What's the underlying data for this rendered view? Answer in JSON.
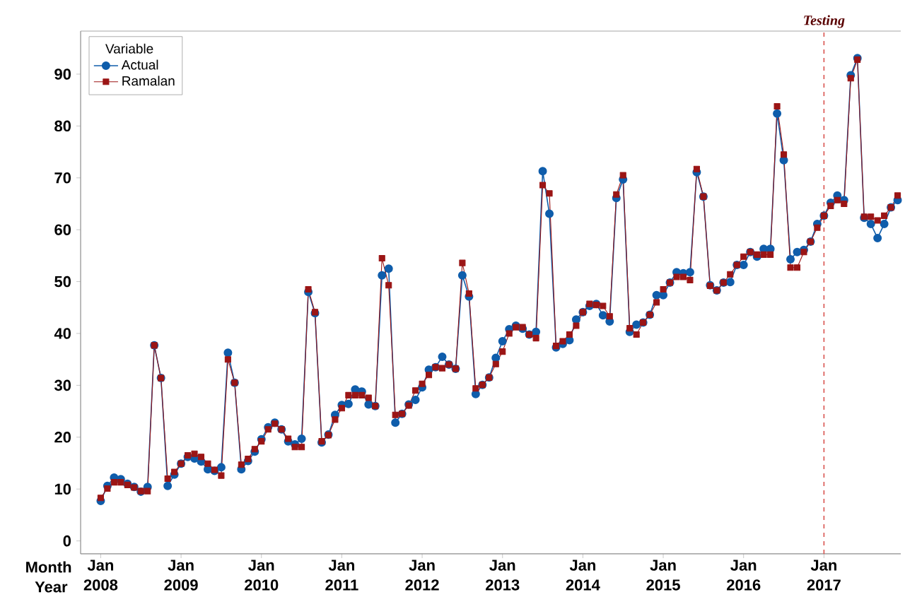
{
  "chart_data": {
    "type": "line",
    "x": [
      "2008-01",
      "2008-02",
      "2008-03",
      "2008-04",
      "2008-05",
      "2008-06",
      "2008-07",
      "2008-08",
      "2008-09",
      "2008-10",
      "2008-11",
      "2008-12",
      "2009-01",
      "2009-02",
      "2009-03",
      "2009-04",
      "2009-05",
      "2009-06",
      "2009-07",
      "2009-08",
      "2009-09",
      "2009-10",
      "2009-11",
      "2009-12",
      "2010-01",
      "2010-02",
      "2010-03",
      "2010-04",
      "2010-05",
      "2010-06",
      "2010-07",
      "2010-08",
      "2010-09",
      "2010-10",
      "2010-11",
      "2010-12",
      "2011-01",
      "2011-02",
      "2011-03",
      "2011-04",
      "2011-05",
      "2011-06",
      "2011-07",
      "2011-08",
      "2011-09",
      "2011-10",
      "2011-11",
      "2011-12",
      "2012-01",
      "2012-02",
      "2012-03",
      "2012-04",
      "2012-05",
      "2012-06",
      "2012-07",
      "2012-08",
      "2012-09",
      "2012-10",
      "2012-11",
      "2012-12",
      "2013-01",
      "2013-02",
      "2013-03",
      "2013-04",
      "2013-05",
      "2013-06",
      "2013-07",
      "2013-08",
      "2013-09",
      "2013-10",
      "2013-11",
      "2013-12",
      "2014-01",
      "2014-02",
      "2014-03",
      "2014-04",
      "2014-05",
      "2014-06",
      "2014-07",
      "2014-08",
      "2014-09",
      "2014-10",
      "2014-11",
      "2014-12",
      "2015-01",
      "2015-02",
      "2015-03",
      "2015-04",
      "2015-05",
      "2015-06",
      "2015-07",
      "2015-08",
      "2015-09",
      "2015-10",
      "2015-11",
      "2015-12",
      "2016-01",
      "2016-02",
      "2016-03",
      "2016-04",
      "2016-05",
      "2016-06",
      "2016-07",
      "2016-08",
      "2016-09",
      "2016-10",
      "2016-11",
      "2016-12",
      "2017-01",
      "2017-02",
      "2017-03",
      "2017-04",
      "2017-05",
      "2017-06",
      "2017-07",
      "2017-08",
      "2017-09",
      "2017-10",
      "2017-11",
      "2017-12"
    ],
    "series": [
      {
        "name": "Actual",
        "color": "#0f5dab",
        "marker": "circle",
        "values": [
          7.7,
          10.6,
          12.2,
          11.9,
          11.0,
          10.4,
          9.5,
          10.4,
          37.7,
          31.4,
          10.6,
          12.8,
          14.9,
          16.2,
          15.9,
          15.3,
          13.8,
          13.5,
          14.2,
          36.3,
          30.5,
          13.8,
          15.4,
          17.2,
          19.6,
          21.9,
          22.8,
          21.5,
          19.2,
          18.6,
          19.7,
          48.0,
          43.9,
          19.0,
          20.5,
          24.3,
          26.2,
          26.4,
          29.2,
          28.8,
          26.3,
          26.0,
          51.2,
          52.5,
          22.8,
          24.5,
          26.3,
          27.2,
          29.6,
          33.0,
          33.5,
          35.5,
          34.0,
          33.2,
          51.2,
          47.1,
          28.3,
          30.1,
          31.5,
          35.3,
          38.5,
          40.8,
          41.5,
          40.9,
          39.8,
          40.3,
          71.3,
          63.1,
          37.3,
          38.0,
          38.7,
          42.7,
          44.1,
          45.3,
          45.7,
          43.5,
          42.3,
          66.1,
          69.7,
          40.3,
          41.7,
          42.1,
          43.6,
          47.4,
          47.4,
          49.8,
          51.8,
          51.6,
          51.8,
          71.1,
          66.4,
          49.3,
          48.3,
          49.8,
          49.9,
          53.2,
          53.2,
          55.7,
          54.8,
          56.3,
          56.3,
          82.4,
          73.4,
          54.3,
          55.7,
          56.1,
          57.7,
          61.1,
          62.7,
          65.2,
          66.6,
          65.7,
          89.8,
          93.1,
          62.3,
          61.1,
          58.4,
          61.1,
          64.3,
          65.7
        ]
      },
      {
        "name": "Ramalan",
        "color": "#9b1515",
        "marker": "square",
        "values": [
          8.3,
          10.1,
          11.3,
          11.3,
          10.8,
          10.3,
          9.6,
          9.6,
          37.7,
          31.4,
          12.0,
          13.3,
          14.9,
          16.5,
          16.8,
          16.2,
          14.9,
          13.7,
          12.6,
          35.0,
          30.5,
          14.7,
          15.8,
          17.7,
          19.2,
          21.5,
          22.6,
          21.5,
          19.7,
          18.1,
          18.1,
          48.5,
          44.1,
          19.2,
          20.4,
          23.4,
          25.6,
          28.1,
          28.1,
          28.1,
          27.6,
          26.0,
          54.5,
          49.3,
          24.3,
          24.5,
          26.1,
          29.0,
          30.3,
          32.0,
          33.5,
          33.3,
          34.0,
          33.2,
          53.6,
          47.7,
          29.4,
          30.1,
          31.5,
          34.1,
          36.5,
          40.0,
          41.2,
          41.2,
          39.8,
          39.1,
          68.6,
          67.0,
          37.6,
          38.5,
          39.8,
          41.5,
          44.1,
          45.7,
          45.5,
          45.3,
          43.3,
          66.8,
          70.5,
          41.0,
          39.8,
          42.1,
          43.6,
          46.0,
          48.5,
          49.8,
          50.9,
          50.9,
          50.3,
          71.7,
          66.4,
          49.2,
          48.3,
          49.8,
          51.4,
          53.2,
          54.8,
          55.7,
          55.2,
          55.2,
          55.2,
          83.8,
          74.5,
          52.7,
          52.7,
          55.7,
          57.7,
          60.4,
          62.7,
          64.6,
          65.7,
          65.0,
          89.2,
          92.8,
          62.5,
          62.5,
          61.8,
          62.7,
          64.3,
          66.6
        ]
      }
    ],
    "xlabel": "Month Year",
    "legend_title": "Variable",
    "legend": "top left",
    "xlim": [
      "2007-10",
      "2017-12-15"
    ],
    "xticks": [
      {
        "value": "2008-01",
        "label": "Jan 2008"
      },
      {
        "value": "2009-01",
        "label": "Jan 2009"
      },
      {
        "value": "2010-01",
        "label": "Jan 2010"
      },
      {
        "value": "2011-01",
        "label": "Jan 2011"
      },
      {
        "value": "2012-01",
        "label": "Jan 2012"
      },
      {
        "value": "2013-01",
        "label": "Jan 2013"
      },
      {
        "value": "2014-01",
        "label": "Jan 2014"
      },
      {
        "value": "2015-01",
        "label": "Jan 2015"
      },
      {
        "value": "2016-01",
        "label": "Jan 2016"
      },
      {
        "value": "2017-01",
        "label": "Jan 2017"
      }
    ],
    "ylim": [
      -2.5,
      98.3
    ],
    "yticks": [
      0,
      10,
      20,
      30,
      40,
      50,
      60,
      70,
      80,
      90
    ],
    "ref_lines": [
      {
        "axis": "x",
        "value": "2017-01",
        "label": "Testing",
        "color": "#d9534f",
        "line_style": "dashed"
      }
    ],
    "grid": false,
    "line_style": "solid"
  }
}
